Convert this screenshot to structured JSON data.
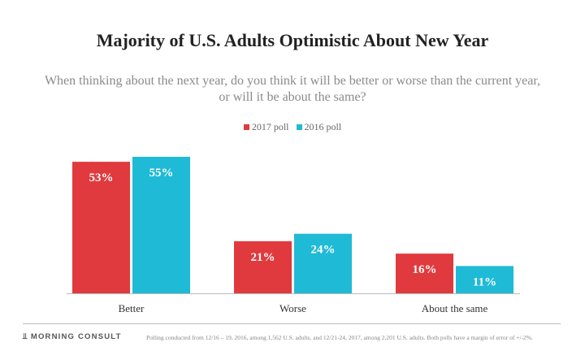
{
  "chart_data": {
    "type": "bar",
    "title": "Majority of U.S. Adults Optimistic About New Year",
    "subtitle": "When thinking about the next year, do you think it will be better or worse than the current year, or will it be about the same?",
    "categories": [
      "Better",
      "Worse",
      "About the same"
    ],
    "series": [
      {
        "name": "2017 poll",
        "color": "#e03a3e",
        "values": [
          53,
          21,
          16
        ],
        "labels": [
          "53%",
          "21%",
          "16%"
        ]
      },
      {
        "name": "2016 poll",
        "color": "#1fbad6",
        "values": [
          55,
          24,
          11
        ],
        "labels": [
          "55%",
          "24%",
          "11%"
        ]
      }
    ],
    "ylim": [
      0,
      55
    ],
    "legend": "top-center",
    "grid": false
  },
  "footer": {
    "brand": "MORNING CONSULT",
    "note": "Polling conducted from 12/16 – 19, 2016, among 1,562 U.S. adults, and 12/21-24, 2017, among 2,201 U.S. adults. Both polls have a margin of error of +/-2%."
  }
}
